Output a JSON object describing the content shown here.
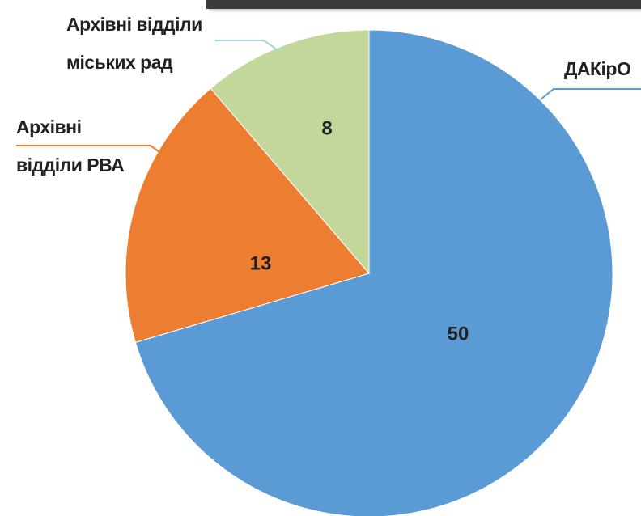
{
  "chart_data": {
    "type": "pie",
    "categories": [
      "ДАКірО",
      "Архівні\nвідділи РВА",
      "Архівні відділи\nміських рад"
    ],
    "values": [
      50,
      13,
      8
    ],
    "colors": [
      "#5b9bd5",
      "#ed7d31",
      "#c4d79b"
    ],
    "leader_colors": [
      "#5b9bd5",
      "#ed7d31",
      "#9fd8d4"
    ]
  }
}
